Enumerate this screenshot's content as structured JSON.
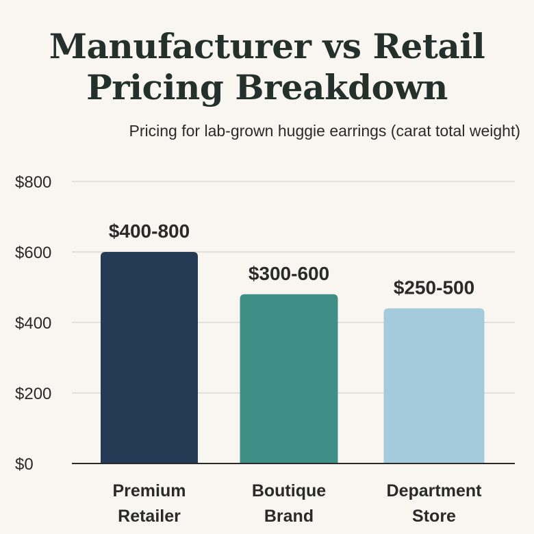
{
  "chart_data": {
    "type": "bar",
    "title_lines": [
      "Manufacturer vs Retail",
      "Pricing Breakdown"
    ],
    "subtitle": "Pricing for lab-grown huggie earrings (carat total weight)",
    "categories": [
      {
        "lines": [
          "Premium",
          "Retailer"
        ]
      },
      {
        "lines": [
          "Boutique",
          "Brand"
        ]
      },
      {
        "lines": [
          "Department",
          "Store"
        ]
      }
    ],
    "values": [
      600,
      480,
      440
    ],
    "data_labels": [
      "$400-800",
      "$300-600",
      "$250-500"
    ],
    "ylim": [
      0,
      800
    ],
    "yticks": [
      0,
      200,
      400,
      600,
      800
    ],
    "ytick_labels": [
      "$0",
      "$200",
      "$400",
      "$600",
      "$800"
    ],
    "grid": true,
    "colors": [
      "#243a55",
      "#3f8f86",
      "#a3cbdb"
    ]
  }
}
